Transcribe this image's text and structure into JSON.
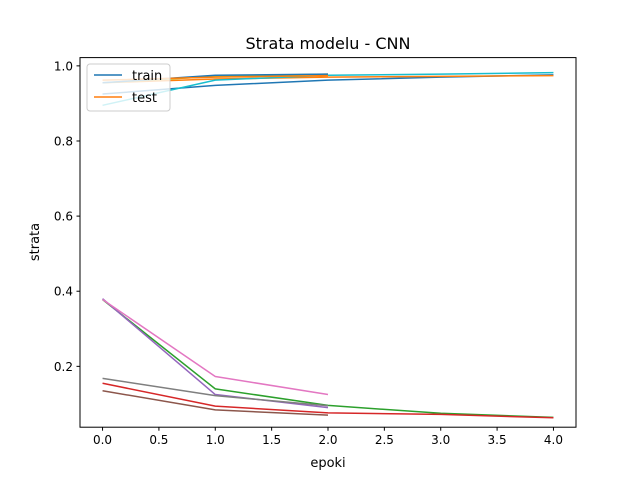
{
  "chart_data": {
    "type": "line",
    "title": "Strata modelu - CNN",
    "xlabel": "epoki",
    "ylabel": "strata",
    "xlim": [
      -0.2,
      4.2
    ],
    "ylim": [
      0.038,
      1.022
    ],
    "xticks": [
      0.0,
      0.5,
      1.0,
      1.5,
      2.0,
      2.5,
      3.0,
      3.5,
      4.0
    ],
    "xtick_labels": [
      "0.0",
      "0.5",
      "1.0",
      "1.5",
      "2.0",
      "2.5",
      "3.0",
      "3.5",
      "4.0"
    ],
    "yticks": [
      0.2,
      0.4,
      0.6,
      0.8,
      1.0
    ],
    "ytick_labels": [
      "0.2",
      "0.4",
      "0.6",
      "0.8",
      "1.0"
    ],
    "grid": false,
    "legend": {
      "placement": "top-left",
      "entries": [
        {
          "label": "train",
          "color": "#1f77b4"
        },
        {
          "label": "test",
          "color": "#ff7f0e"
        }
      ]
    },
    "series": [
      {
        "color": "#1f77b4",
        "x": [
          0,
          1,
          2,
          3,
          4
        ],
        "y": [
          0.925,
          0.948,
          0.962,
          0.97,
          0.976
        ]
      },
      {
        "color": "#ff7f0e",
        "x": [
          0,
          1,
          2,
          3,
          4
        ],
        "y": [
          0.955,
          0.965,
          0.97,
          0.972,
          0.974
        ]
      },
      {
        "color": "#2ca02c",
        "x": [
          0,
          1,
          2,
          3,
          4
        ],
        "y": [
          0.378,
          0.14,
          0.096,
          0.075,
          0.064
        ]
      },
      {
        "color": "#d62728",
        "x": [
          0,
          1,
          2,
          3,
          4
        ],
        "y": [
          0.155,
          0.094,
          0.076,
          0.072,
          0.063
        ]
      },
      {
        "color": "#9467bd",
        "x": [
          0,
          1,
          2
        ],
        "y": [
          0.38,
          0.125,
          0.09
        ]
      },
      {
        "color": "#8c564b",
        "x": [
          0,
          1,
          2
        ],
        "y": [
          0.135,
          0.084,
          0.07
        ]
      },
      {
        "color": "#e377c2",
        "x": [
          0,
          1,
          2
        ],
        "y": [
          0.378,
          0.173,
          0.125
        ]
      },
      {
        "color": "#7f7f7f",
        "x": [
          0,
          1,
          2
        ],
        "y": [
          0.168,
          0.122,
          0.095
        ]
      },
      {
        "color": "#bcbd22",
        "x": [
          0,
          1,
          2
        ],
        "y": [
          0.955,
          0.972,
          0.978
        ]
      },
      {
        "color": "#17becf",
        "x": [
          0,
          1,
          2,
          3,
          4
        ],
        "y": [
          0.895,
          0.962,
          0.975,
          0.978,
          0.982
        ]
      },
      {
        "color": "#1f77b4",
        "x": [
          0,
          1,
          2
        ],
        "y": [
          0.955,
          0.975,
          0.978
        ]
      },
      {
        "color": "#ff7f0e",
        "x": [
          0,
          1,
          2
        ],
        "y": [
          0.962,
          0.97,
          0.974
        ]
      }
    ]
  }
}
